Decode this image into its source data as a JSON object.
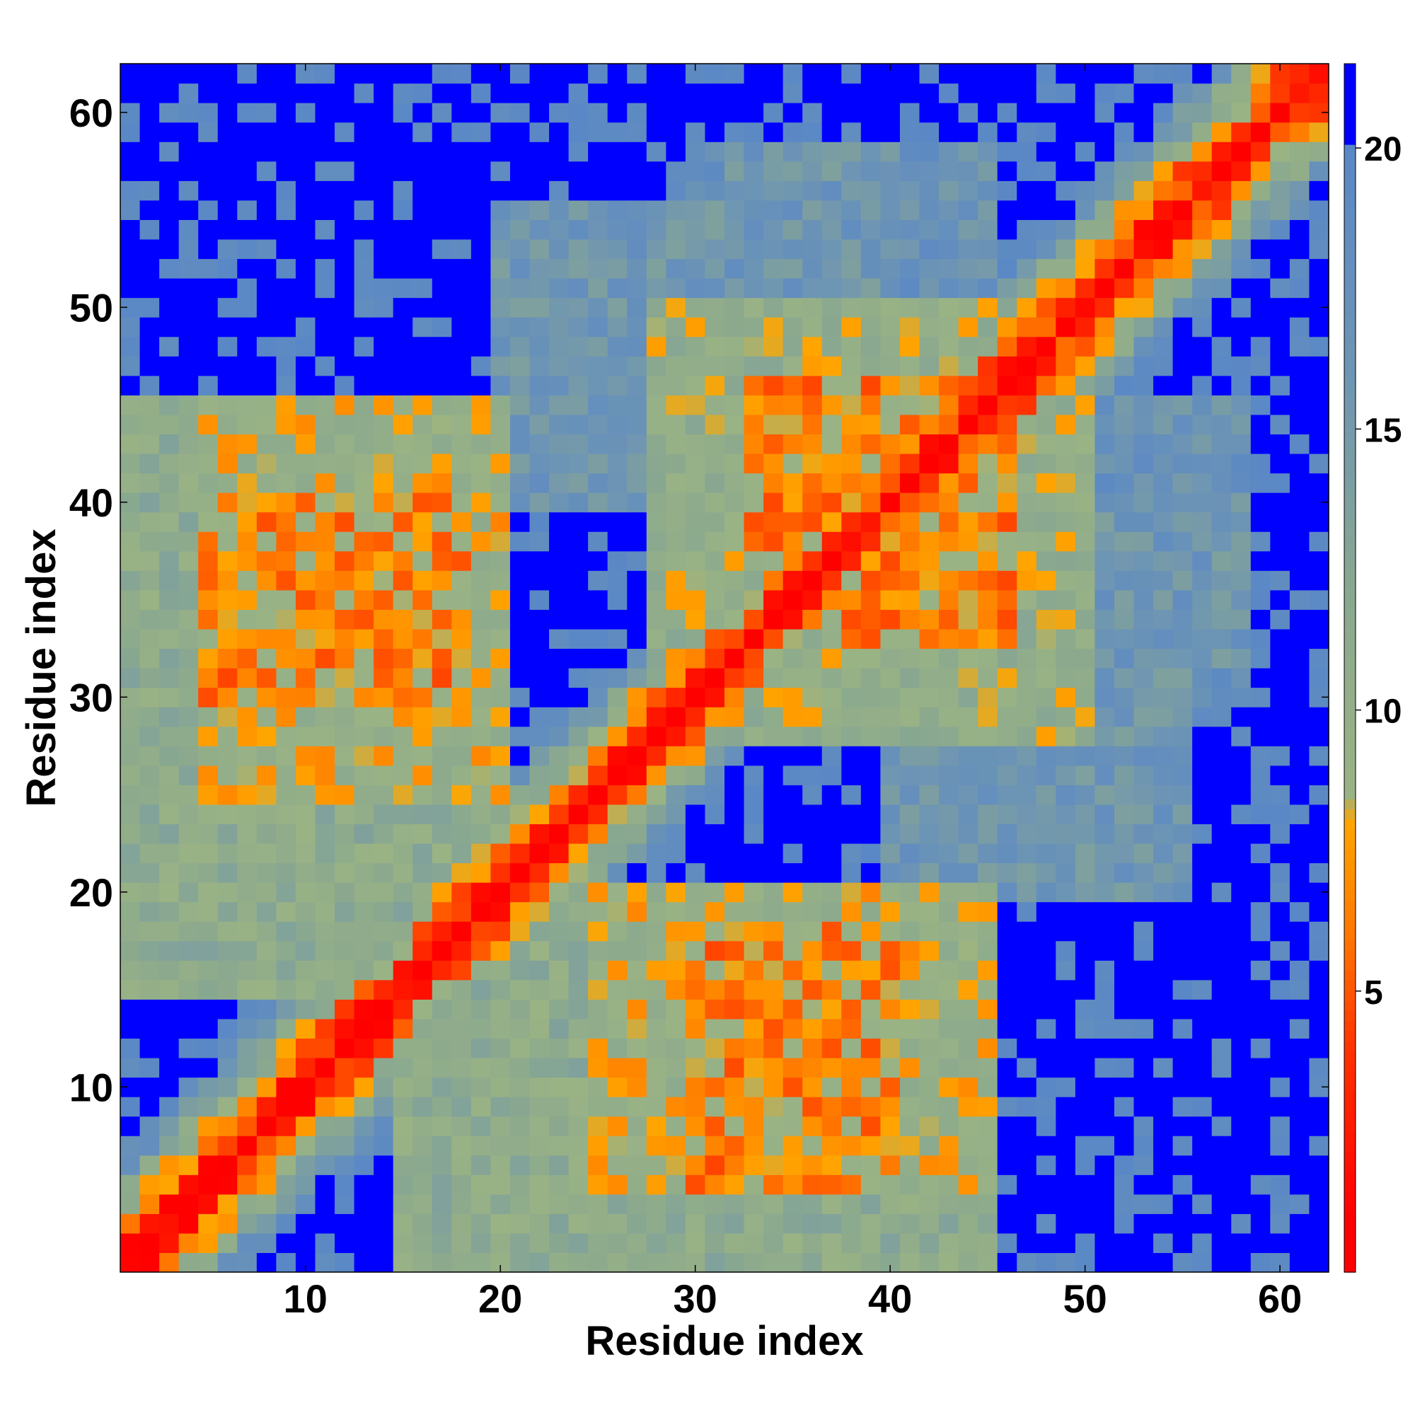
{
  "chart_data": {
    "type": "heatmap",
    "title": "",
    "xlabel": "Residue index",
    "ylabel": "Residue index",
    "n": 62,
    "xlim": [
      0.5,
      62.5
    ],
    "ylim": [
      0.5,
      62.5
    ],
    "x_ticks": [
      10,
      20,
      30,
      40,
      50,
      60
    ],
    "y_ticks": [
      10,
      20,
      30,
      40,
      50,
      60
    ],
    "colorbar": {
      "range": [
        0,
        21.5
      ],
      "ticks": [
        5,
        10,
        15,
        20
      ],
      "stops": [
        {
          "value": 0,
          "color": "#ff0000"
        },
        {
          "value": 1,
          "color": "#ff0000"
        },
        {
          "value": 4,
          "color": "#ff3300"
        },
        {
          "value": 6,
          "color": "#ff7700"
        },
        {
          "value": 8,
          "color": "#ffa500"
        },
        {
          "value": 8.5,
          "color": "#9ab384"
        },
        {
          "value": 12,
          "color": "#8aa88f"
        },
        {
          "value": 16,
          "color": "#6e95b3"
        },
        {
          "value": 20,
          "color": "#5a88c6"
        },
        {
          "value": 20.01,
          "color": "#0000ff"
        },
        {
          "value": 21.5,
          "color": "#0000ff"
        }
      ]
    },
    "values_description": "Symmetric residue-residue distance map; red diagonal band (low distances), orange/yellow near contacts, green/grey-blue intermediate, blue background (>= 20).",
    "distance_model": {
      "diagonal_rate": 3.2,
      "saturation": 21,
      "cutoff": 20,
      "contact_regions": [
        {
          "x": [
            1,
            20
          ],
          "y": [
            15,
            45
          ],
          "d": 11
        },
        {
          "x": [
            5,
            18
          ],
          "y": [
            30,
            40
          ],
          "d": 7
        },
        {
          "x": [
            25,
            45
          ],
          "y": [
            5,
            20
          ],
          "d": 9
        },
        {
          "x": [
            28,
            50
          ],
          "y": [
            30,
            50
          ],
          "d": 10
        },
        {
          "x": [
            33,
            45
          ],
          "y": [
            38,
            46
          ],
          "d": 7
        },
        {
          "x": [
            30,
            45
          ],
          "y": [
            50,
            58
          ],
          "d": 17
        },
        {
          "x": [
            40,
            55
          ],
          "y": [
            20,
            40
          ],
          "d": 16
        },
        {
          "x": [
            45,
            58
          ],
          "y": [
            32,
            40
          ],
          "d": 16
        }
      ]
    }
  }
}
